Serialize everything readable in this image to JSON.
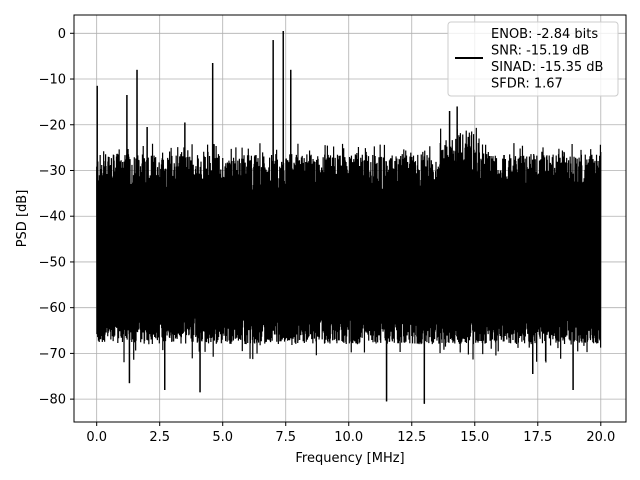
{
  "chart_data": {
    "type": "line",
    "xlabel": "Frequency [MHz]",
    "ylabel": "PSD [dB]",
    "xlim": [
      -0.9,
      21.0
    ],
    "ylim": [
      -85.0,
      4.0
    ],
    "xticks": [
      0.0,
      2.5,
      5.0,
      7.5,
      10.0,
      12.5,
      15.0,
      17.5,
      20.0
    ],
    "xtick_labels": [
      "0.0",
      "2.5",
      "5.0",
      "7.5",
      "10.0",
      "12.5",
      "15.0",
      "17.5",
      "20.0"
    ],
    "yticks": [
      0,
      -10,
      -20,
      -30,
      -40,
      -50,
      -60,
      -70,
      -80
    ],
    "ytick_labels": [
      "0",
      "−10",
      "−20",
      "−30",
      "−40",
      "−50",
      "−60",
      "−70",
      "−80"
    ],
    "grid": true,
    "legend_position": "top-right",
    "legend_lines": [
      "ENOB: -2.84 bits",
      "SNR: -15.19 dB",
      "SINAD: -15.35 dB",
      "SFDR: 1.67"
    ],
    "line_color": "#000000",
    "noise": {
      "x_start": 0.0,
      "x_end": 20.0,
      "upper_envelope_db": -32,
      "lower_envelope_db": -62,
      "typical_top_db": -28,
      "typical_bottom_db": -66
    },
    "spurs": [
      {
        "x": 0.02,
        "y": -11.5
      },
      {
        "x": 1.2,
        "y": -13.5
      },
      {
        "x": 1.6,
        "y": -8.0
      },
      {
        "x": 2.0,
        "y": -20.5
      },
      {
        "x": 3.5,
        "y": -19.5
      },
      {
        "x": 4.6,
        "y": -6.5
      },
      {
        "x": 7.0,
        "y": -1.5
      },
      {
        "x": 7.4,
        "y": 0.5
      },
      {
        "x": 7.7,
        "y": -8.0
      },
      {
        "x": 14.0,
        "y": -17.0
      },
      {
        "x": 14.3,
        "y": -16.0
      }
    ],
    "dips": [
      {
        "x": 1.3,
        "y": -76.5
      },
      {
        "x": 2.7,
        "y": -78.0
      },
      {
        "x": 4.1,
        "y": -78.5
      },
      {
        "x": 11.5,
        "y": -80.5
      },
      {
        "x": 13.0,
        "y": -81.0
      },
      {
        "x": 18.9,
        "y": -78.0
      },
      {
        "x": 17.3,
        "y": -74.5
      }
    ]
  }
}
